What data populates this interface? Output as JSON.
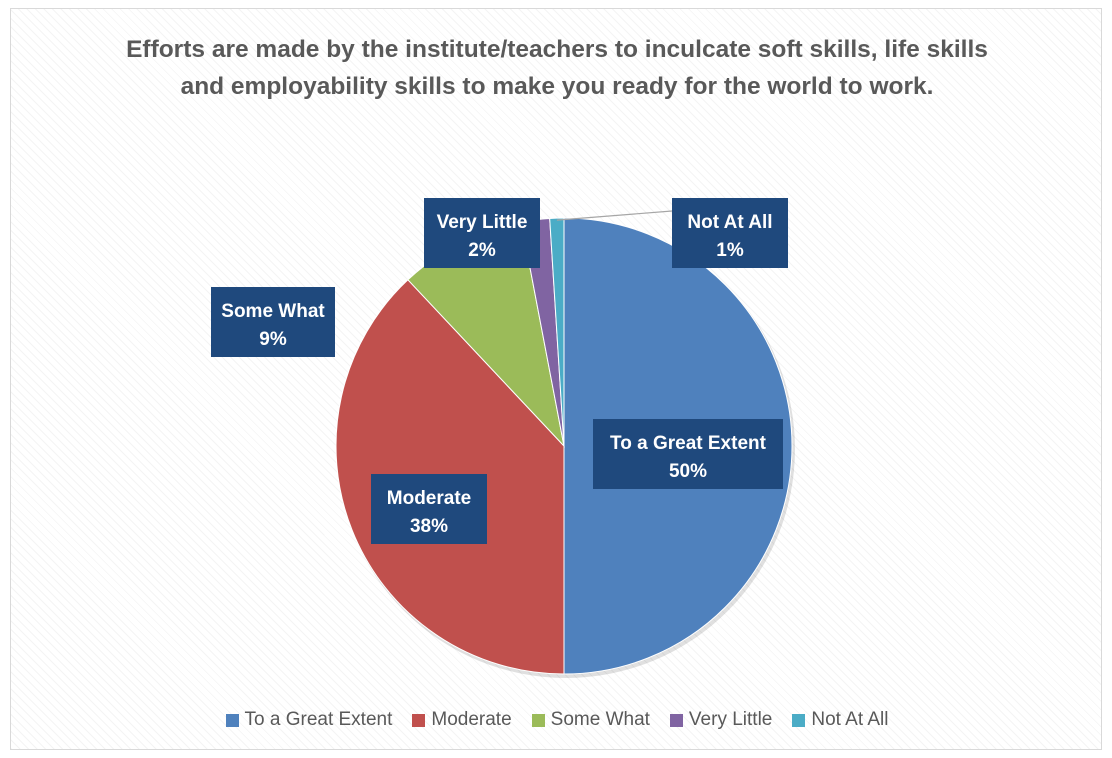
{
  "chart_data": {
    "type": "pie",
    "title": "Efforts are made by the institute/teachers to inculcate soft skills, life skills and employability skills to make you ready for the world to work.",
    "categories": [
      "To a Great Extent",
      "Moderate",
      "Some What",
      "Very Little",
      "Not At All"
    ],
    "values": [
      50,
      38,
      9,
      2,
      1
    ],
    "value_labels": [
      "50%",
      "38%",
      "9%",
      "2%",
      "1%"
    ],
    "colors": [
      "#4F81BD",
      "#C0504D",
      "#9BBB59",
      "#8064A2",
      "#4BACC6"
    ],
    "label_background": "#1F497D",
    "legend_position": "bottom",
    "start_angle": "12 o'clock, clockwise"
  }
}
